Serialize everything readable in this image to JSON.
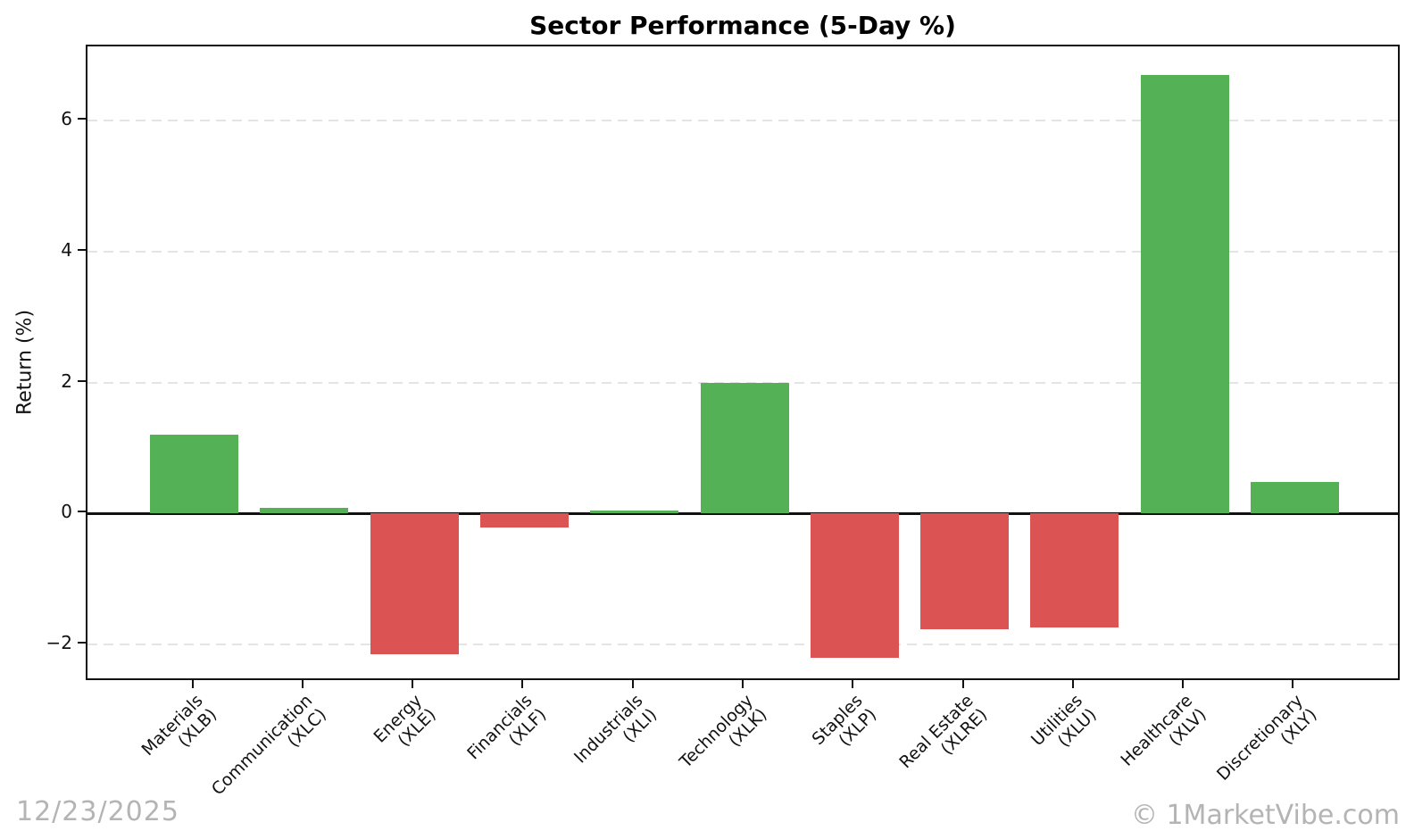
{
  "title": "Sector Performance (5-Day %)",
  "y_axis_title": "Return (%)",
  "date_stamp": "12/23/2025",
  "watermark": "© 1MarketVibe.com",
  "colors": {
    "positive_bar": "#55b155",
    "negative_bar": "#dc5353",
    "gridline": "#e4e4e4",
    "axis": "#111111",
    "watermark_text": "#b4b4b4"
  },
  "chart_data": {
    "type": "bar",
    "title": "Sector Performance (5-Day %)",
    "xlabel": "",
    "ylabel": "Return (%)",
    "categories": [
      {
        "sector": "Materials",
        "ticker": "(XLB)"
      },
      {
        "sector": "Communication",
        "ticker": "(XLC)"
      },
      {
        "sector": "Energy",
        "ticker": "(XLE)"
      },
      {
        "sector": "Financials",
        "ticker": "(XLF)"
      },
      {
        "sector": "Industrials",
        "ticker": "(XLI)"
      },
      {
        "sector": "Technology",
        "ticker": "(XLK)"
      },
      {
        "sector": "Staples",
        "ticker": "(XLP)"
      },
      {
        "sector": "Real Estate",
        "ticker": "(XLRE)"
      },
      {
        "sector": "Utilities",
        "ticker": "(XLU)"
      },
      {
        "sector": "Healthcare",
        "ticker": "(XLV)"
      },
      {
        "sector": "Discretionary",
        "ticker": "(XLY)"
      }
    ],
    "values": [
      1.2,
      0.08,
      -2.15,
      -0.21,
      0.05,
      2.0,
      -2.2,
      -1.76,
      -1.74,
      6.7,
      0.48
    ],
    "ylim": [
      -2.57,
      7.13
    ],
    "yticks": [
      6,
      4,
      2,
      0,
      -2
    ],
    "grid": "horizontal-dashed",
    "zero_line": true,
    "legend": "none"
  }
}
